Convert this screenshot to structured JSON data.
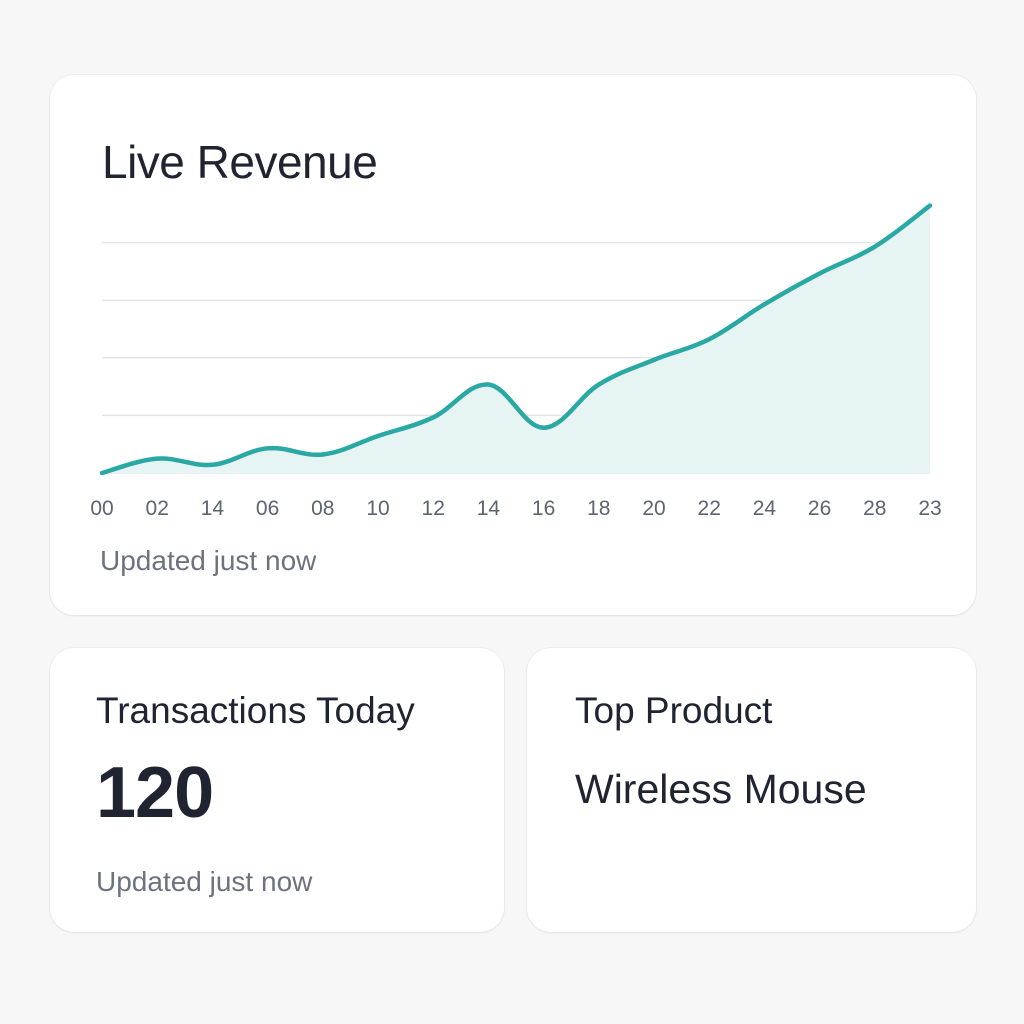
{
  "revenue_card": {
    "title": "Live Revenue",
    "updated": "Updated just now",
    "accent": "#2aa8a3",
    "fill": "#e6f4f4"
  },
  "transactions_card": {
    "title": "Transactions Today",
    "value": "120",
    "updated": "Updated just now"
  },
  "product_card": {
    "title": "Top Product",
    "value": "Wireless Mouse"
  },
  "chart_data": {
    "type": "area",
    "title": "Live Revenue",
    "categories": [
      "00",
      "02",
      "14",
      "06",
      "08",
      "10",
      "12",
      "14",
      "16",
      "18",
      "20",
      "22",
      "24",
      "26",
      "28",
      "23"
    ],
    "series": [
      {
        "values": [
          0,
          7,
          4,
          12,
          9,
          18,
          27,
          43,
          22,
          43,
          55,
          65,
          82,
          97,
          110,
          130
        ]
      }
    ],
    "ylim": [
      0,
      140
    ],
    "grid": true,
    "color": "#2aa8a3"
  }
}
